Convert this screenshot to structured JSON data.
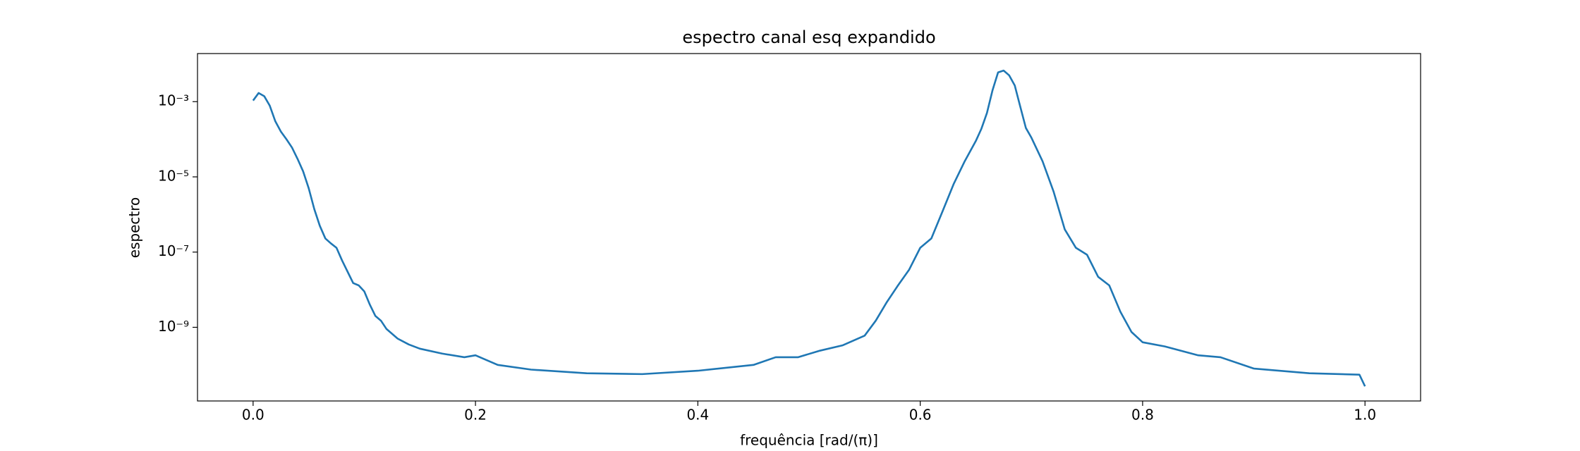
{
  "chart_data": {
    "type": "line",
    "title": "espectro canal esq expandido",
    "xlabel": "frequência [rad/(π)]",
    "ylabel": "espectro",
    "log_y": true,
    "x": [
      0.0,
      0.005,
      0.01,
      0.015,
      0.02,
      0.025,
      0.03,
      0.035,
      0.04,
      0.045,
      0.05,
      0.055,
      0.06,
      0.065,
      0.07,
      0.075,
      0.08,
      0.085,
      0.09,
      0.095,
      0.1,
      0.105,
      0.11,
      0.115,
      0.12,
      0.13,
      0.14,
      0.15,
      0.17,
      0.19,
      0.2,
      0.22,
      0.25,
      0.3,
      0.35,
      0.4,
      0.45,
      0.47,
      0.49,
      0.51,
      0.53,
      0.55,
      0.56,
      0.57,
      0.58,
      0.59,
      0.6,
      0.61,
      0.62,
      0.63,
      0.64,
      0.65,
      0.655,
      0.66,
      0.665,
      0.67,
      0.675,
      0.68,
      0.685,
      0.69,
      0.695,
      0.7,
      0.71,
      0.72,
      0.73,
      0.74,
      0.75,
      0.76,
      0.77,
      0.78,
      0.79,
      0.8,
      0.82,
      0.85,
      0.87,
      0.9,
      0.95,
      0.995,
      1.0
    ],
    "series": [
      {
        "name": "espectro",
        "color": "#1f77b4",
        "values": [
          0.00107,
          0.0017,
          0.0014,
          0.00078,
          0.0003,
          0.00016,
          0.0001,
          6e-05,
          3e-05,
          1.4e-05,
          5e-06,
          1.4e-06,
          5e-07,
          2.3e-07,
          1.7e-07,
          1.3e-07,
          6e-08,
          3e-08,
          1.5e-08,
          1.3e-08,
          9e-09,
          4e-09,
          2e-09,
          1.5e-09,
          9e-10,
          5e-10,
          3.5e-10,
          2.7e-10,
          2e-10,
          1.6e-10,
          1.8e-10,
          1e-10,
          7.5e-11,
          6e-11,
          5.7e-11,
          7e-11,
          1e-10,
          1.6e-10,
          1.6e-10,
          2.4e-10,
          3.3e-10,
          6e-10,
          1.5e-09,
          4.7e-09,
          1.3e-08,
          3.4e-08,
          1.3e-07,
          2.3e-07,
          1.2e-06,
          6.4e-06,
          2.6e-05,
          9e-05,
          0.00019,
          0.0005,
          0.002,
          0.006,
          0.0067,
          0.005,
          0.0027,
          0.00073,
          0.0002,
          0.00011,
          2.6e-05,
          4e-06,
          4e-07,
          1.3e-07,
          8.5e-08,
          2.2e-08,
          1.3e-08,
          2.6e-09,
          7.5e-10,
          4e-10,
          3.1e-10,
          1.8e-10,
          1.6e-10,
          8e-11,
          6e-11,
          5.5e-11,
          2.7e-11
        ]
      }
    ],
    "xlim": [
      -0.05,
      1.05
    ],
    "xticks": [
      {
        "value": 0,
        "label": "0.0"
      },
      0.2,
      0.4,
      0.6,
      0.8,
      {
        "value": 1,
        "label": "1.0"
      }
    ],
    "ylim": [
      1.1e-11,
      0.019
    ],
    "yticks": [
      {
        "value": 1e-09,
        "label": "10⁻⁹"
      },
      {
        "value": 1e-07,
        "label": "10⁻⁷"
      },
      {
        "value": 1e-05,
        "label": "10⁻⁵"
      },
      {
        "value": 0.001,
        "label": "10⁻³"
      }
    ],
    "grid": false
  }
}
